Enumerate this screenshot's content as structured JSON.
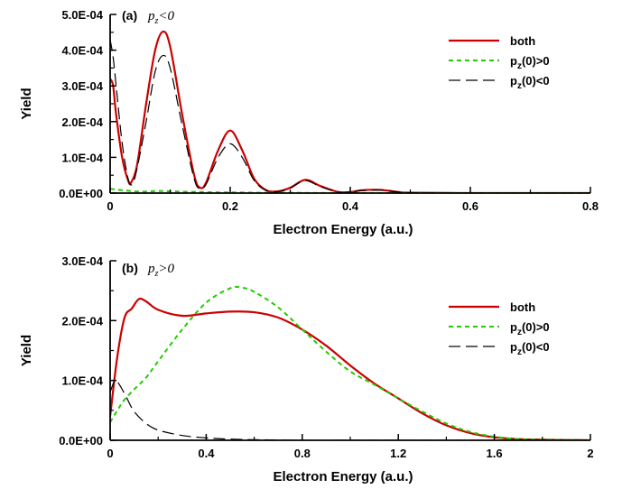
{
  "chart_data": [
    {
      "type": "line",
      "panel_tag": "(a)",
      "panel_condition": "p_z<0",
      "xlabel": "Electron Energy (a.u.)",
      "ylabel": "Yield",
      "xlim": [
        0,
        0.8
      ],
      "ylim": [
        0,
        0.0005
      ],
      "xticks": [
        "0",
        "0.2",
        "0.4",
        "0.6",
        "0.8"
      ],
      "xtick_values": [
        0,
        0.2,
        0.4,
        0.6,
        0.8
      ],
      "yticks": [
        "0.0E+00",
        "1.0E-04",
        "2.0E-04",
        "3.0E-04",
        "4.0E-04",
        "5.0E-04"
      ],
      "ytick_values": [
        0,
        0.0001,
        0.0002,
        0.0003,
        0.0004,
        0.0005
      ],
      "legend_position": "top-right",
      "series": [
        {
          "name": "both",
          "color": "#cc0000",
          "style": "solid",
          "x": [
            0,
            0.005,
            0.01,
            0.02,
            0.03,
            0.035,
            0.045,
            0.06,
            0.075,
            0.088,
            0.1,
            0.12,
            0.14,
            0.15,
            0.16,
            0.18,
            0.2,
            0.22,
            0.24,
            0.26,
            0.28,
            0.3,
            0.325,
            0.35,
            0.38,
            0.4,
            0.42,
            0.45,
            0.48,
            0.5,
            0.6,
            0.7,
            0.8
          ],
          "values": [
            0.00032,
            0.0003,
            0.00022,
            0.0001,
            3.5e-05,
            3e-05,
            8e-05,
            0.00025,
            0.0004,
            0.000452,
            0.00041,
            0.00022,
            5e-05,
            1.5e-05,
            3e-05,
            0.00012,
            0.000175,
            0.00012,
            4e-05,
            8e-06,
            5e-06,
            1.5e-05,
            3.7e-05,
            2e-05,
            3e-06,
            3e-06,
            8e-06,
            9e-06,
            3e-06,
            1e-06,
            0,
            0,
            0
          ]
        },
        {
          "name": "p_z(0)>0",
          "color": "#22cc00",
          "style": "short-dash",
          "x": [
            0,
            0.02,
            0.05,
            0.08,
            0.1,
            0.12,
            0.15,
            0.18,
            0.2,
            0.25,
            0.3,
            0.4,
            0.8
          ],
          "values": [
            1.2e-05,
            8e-06,
            4e-06,
            6e-06,
            5e-06,
            4e-06,
            3e-06,
            2e-06,
            2e-06,
            1e-06,
            1e-06,
            0,
            0
          ]
        },
        {
          "name": "p_z(0)<0",
          "color": "#000000",
          "style": "long-dash",
          "x": [
            0,
            0.005,
            0.01,
            0.02,
            0.03,
            0.037,
            0.045,
            0.06,
            0.075,
            0.088,
            0.1,
            0.12,
            0.14,
            0.15,
            0.16,
            0.18,
            0.2,
            0.22,
            0.24,
            0.26,
            0.28,
            0.3,
            0.325,
            0.35,
            0.38,
            0.4,
            0.42,
            0.45,
            0.48,
            0.5,
            0.6,
            0.7,
            0.8
          ],
          "values": [
            0.00043,
            0.00038,
            0.0003,
            0.00014,
            4e-05,
            2.5e-05,
            7e-05,
            0.0002,
            0.00034,
            0.000385,
            0.00035,
            0.00019,
            4e-05,
            1.2e-05,
            2.5e-05,
            0.0001,
            0.000138,
            0.0001,
            3.5e-05,
            7e-06,
            4e-06,
            1.4e-05,
            3.5e-05,
            1.8e-05,
            3e-06,
            3e-06,
            7e-06,
            8e-06,
            3e-06,
            1e-06,
            0,
            0,
            0
          ]
        }
      ]
    },
    {
      "type": "line",
      "panel_tag": "(b)",
      "panel_condition": "p_z>0",
      "xlabel": "Electron Energy (a.u.)",
      "ylabel": "Yield",
      "xlim": [
        0,
        2
      ],
      "ylim": [
        0,
        0.0003
      ],
      "xticks": [
        "0",
        "0.4",
        "0.8",
        "1.2",
        "1.6",
        "2"
      ],
      "xtick_values": [
        0,
        0.4,
        0.8,
        1.2,
        1.6,
        2
      ],
      "yticks": [
        "0.0E+00",
        "1.0E-04",
        "2.0E-04",
        "3.0E-04"
      ],
      "ytick_values": [
        0,
        0.0001,
        0.0002,
        0.0003
      ],
      "legend_position": "right",
      "series": [
        {
          "name": "both",
          "color": "#cc0000",
          "style": "solid",
          "x": [
            0,
            0.03,
            0.06,
            0.09,
            0.12,
            0.15,
            0.2,
            0.3,
            0.4,
            0.5,
            0.6,
            0.7,
            0.8,
            0.9,
            1.0,
            1.1,
            1.2,
            1.3,
            1.4,
            1.5,
            1.6,
            1.7,
            1.8,
            2.0
          ],
          "values": [
            4e-05,
            0.00014,
            0.000205,
            0.00022,
            0.000236,
            0.000232,
            0.000218,
            0.000208,
            0.000212,
            0.000215,
            0.000214,
            0.000205,
            0.000185,
            0.000158,
            0.000125,
            9.5e-05,
            7e-05,
            4.5e-05,
            2.5e-05,
            1.2e-05,
            5e-06,
            2e-06,
            1e-06,
            0
          ]
        },
        {
          "name": "p_z(0)>0",
          "color": "#22cc00",
          "style": "short-dash",
          "x": [
            0,
            0.03,
            0.06,
            0.1,
            0.15,
            0.2,
            0.3,
            0.4,
            0.5,
            0.55,
            0.6,
            0.7,
            0.8,
            0.9,
            1.0,
            1.1,
            1.2,
            1.3,
            1.4,
            1.5,
            1.6,
            1.7,
            1.8,
            2.0
          ],
          "values": [
            3e-05,
            5e-05,
            6.8e-05,
            8.5e-05,
            0.000105,
            0.000132,
            0.000185,
            0.00023,
            0.000254,
            0.000255,
            0.000248,
            0.000222,
            0.000185,
            0.000148,
            0.000115,
            9.3e-05,
            7e-05,
            4.8e-05,
            2.8e-05,
            1.4e-05,
            6e-06,
            2e-06,
            1e-06,
            0
          ]
        },
        {
          "name": "p_z(0)<0",
          "color": "#000000",
          "style": "long-dash",
          "x": [
            0,
            0.02,
            0.04,
            0.07,
            0.1,
            0.15,
            0.2,
            0.3,
            0.4,
            0.5,
            0.6,
            0.8,
            1.0,
            1.2,
            1.4,
            1.6,
            1.8,
            2.0
          ],
          "values": [
            8e-05,
            0.0001,
            9.2e-05,
            7e-05,
            4.8e-05,
            2.8e-05,
            1.7e-05,
            8e-06,
            4e-06,
            2e-06,
            1e-06,
            0,
            0,
            0,
            0,
            0,
            0,
            0
          ]
        }
      ]
    }
  ]
}
